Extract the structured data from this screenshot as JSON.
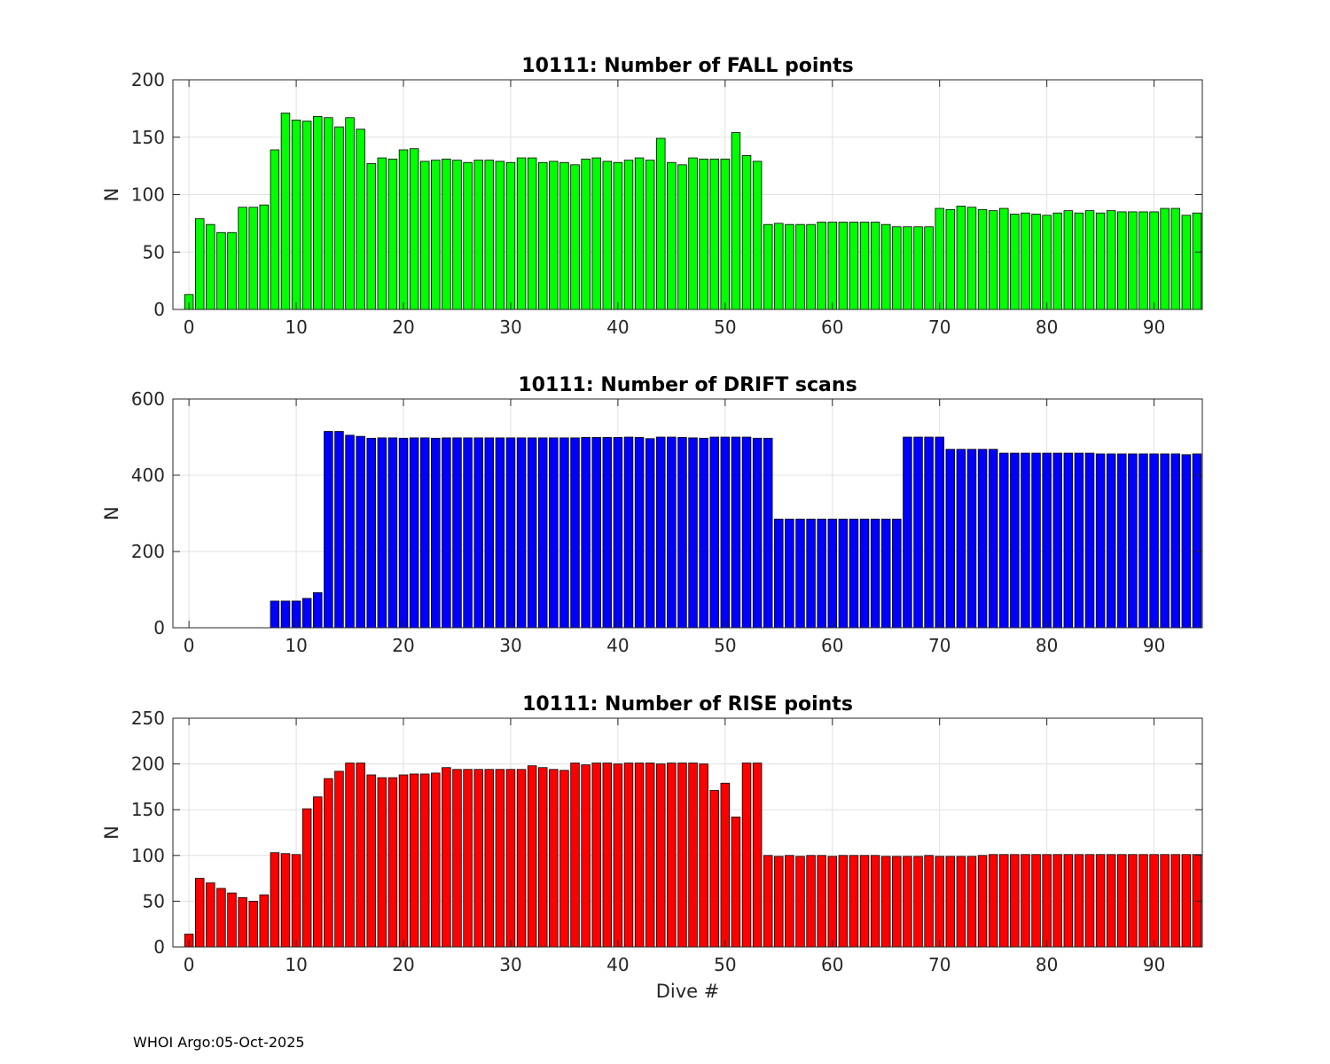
{
  "footer": "WHOI Argo:05-Oct-2025",
  "chart_data": [
    {
      "type": "bar",
      "title": "10111: Number of FALL points",
      "xlabel": "",
      "ylabel": "N",
      "color": "#00ff00",
      "xlim": [
        -1.5,
        94.5
      ],
      "ylim": [
        0,
        200
      ],
      "xticks": [
        0,
        10,
        20,
        30,
        40,
        50,
        60,
        70,
        80,
        90
      ],
      "yticks": [
        0,
        50,
        100,
        150,
        200
      ],
      "grid": true,
      "x_start": 0,
      "values": [
        13,
        79,
        74,
        67,
        67,
        89,
        89,
        91,
        139,
        171,
        165,
        164,
        168,
        167,
        159,
        167,
        157,
        127,
        132,
        131,
        139,
        140,
        129,
        130,
        131,
        130,
        128,
        130,
        130,
        129,
        128,
        132,
        132,
        128,
        129,
        128,
        126,
        131,
        132,
        129,
        128,
        130,
        132,
        130,
        149,
        128,
        126,
        132,
        131,
        131,
        131,
        154,
        134,
        129,
        74,
        75,
        74,
        74,
        74,
        76,
        76,
        76,
        76,
        76,
        76,
        74,
        72,
        72,
        72,
        72,
        88,
        87,
        90,
        89,
        87,
        86,
        88,
        83,
        84,
        83,
        82,
        84,
        86,
        84,
        86,
        84,
        86,
        85,
        85,
        85,
        85,
        88,
        88,
        82,
        84
      ]
    },
    {
      "type": "bar",
      "title": "10111: Number of DRIFT scans",
      "xlabel": "",
      "ylabel": "N",
      "color": "#0000ff",
      "xlim": [
        -1.5,
        94.5
      ],
      "ylim": [
        0,
        600
      ],
      "xticks": [
        0,
        10,
        20,
        30,
        40,
        50,
        60,
        70,
        80,
        90
      ],
      "yticks": [
        0,
        200,
        400,
        600
      ],
      "grid": true,
      "x_start": -1,
      "values": [
        0,
        0,
        0,
        0,
        0,
        0,
        0,
        0,
        0,
        70,
        70,
        70,
        77,
        92,
        515,
        515,
        505,
        502,
        497,
        498,
        498,
        497,
        498,
        498,
        497,
        498,
        498,
        498,
        498,
        498,
        498,
        498,
        498,
        498,
        498,
        498,
        498,
        498,
        499,
        499,
        499,
        499,
        500,
        499,
        496,
        500,
        500,
        499,
        498,
        497,
        500,
        500,
        500,
        500,
        497,
        497,
        285,
        285,
        285,
        285,
        285,
        285,
        285,
        285,
        285,
        285,
        285,
        285,
        500,
        500,
        500,
        500,
        468,
        468,
        468,
        468,
        468,
        458,
        458,
        458,
        458,
        458,
        458,
        458,
        458,
        458,
        456,
        456,
        456,
        456,
        456,
        456,
        456,
        456,
        454,
        456
      ]
    },
    {
      "type": "bar",
      "title": "10111: Number of RISE points",
      "xlabel": "Dive #",
      "ylabel": "N",
      "color": "#ff0000",
      "xlim": [
        -1.5,
        94.5
      ],
      "ylim": [
        0,
        250
      ],
      "xticks": [
        0,
        10,
        20,
        30,
        40,
        50,
        60,
        70,
        80,
        90
      ],
      "yticks": [
        0,
        50,
        100,
        150,
        200,
        250
      ],
      "grid": true,
      "x_start": 0,
      "values": [
        14,
        75,
        70,
        64,
        59,
        54,
        50,
        57,
        103,
        102,
        101,
        151,
        164,
        184,
        192,
        201,
        201,
        188,
        185,
        185,
        188,
        189,
        189,
        190,
        196,
        194,
        194,
        194,
        194,
        194,
        194,
        194,
        198,
        196,
        194,
        193,
        201,
        199,
        201,
        201,
        200,
        201,
        201,
        201,
        200,
        201,
        201,
        201,
        200,
        171,
        179,
        142,
        201,
        201,
        100,
        99,
        100,
        99,
        100,
        100,
        99,
        100,
        100,
        100,
        100,
        99,
        99,
        99,
        99,
        100,
        99,
        99,
        99,
        99,
        100,
        101,
        101,
        101,
        101,
        101,
        101,
        101,
        101,
        101,
        101,
        101,
        101,
        101,
        101,
        101,
        101,
        101,
        101,
        101,
        101
      ]
    }
  ]
}
